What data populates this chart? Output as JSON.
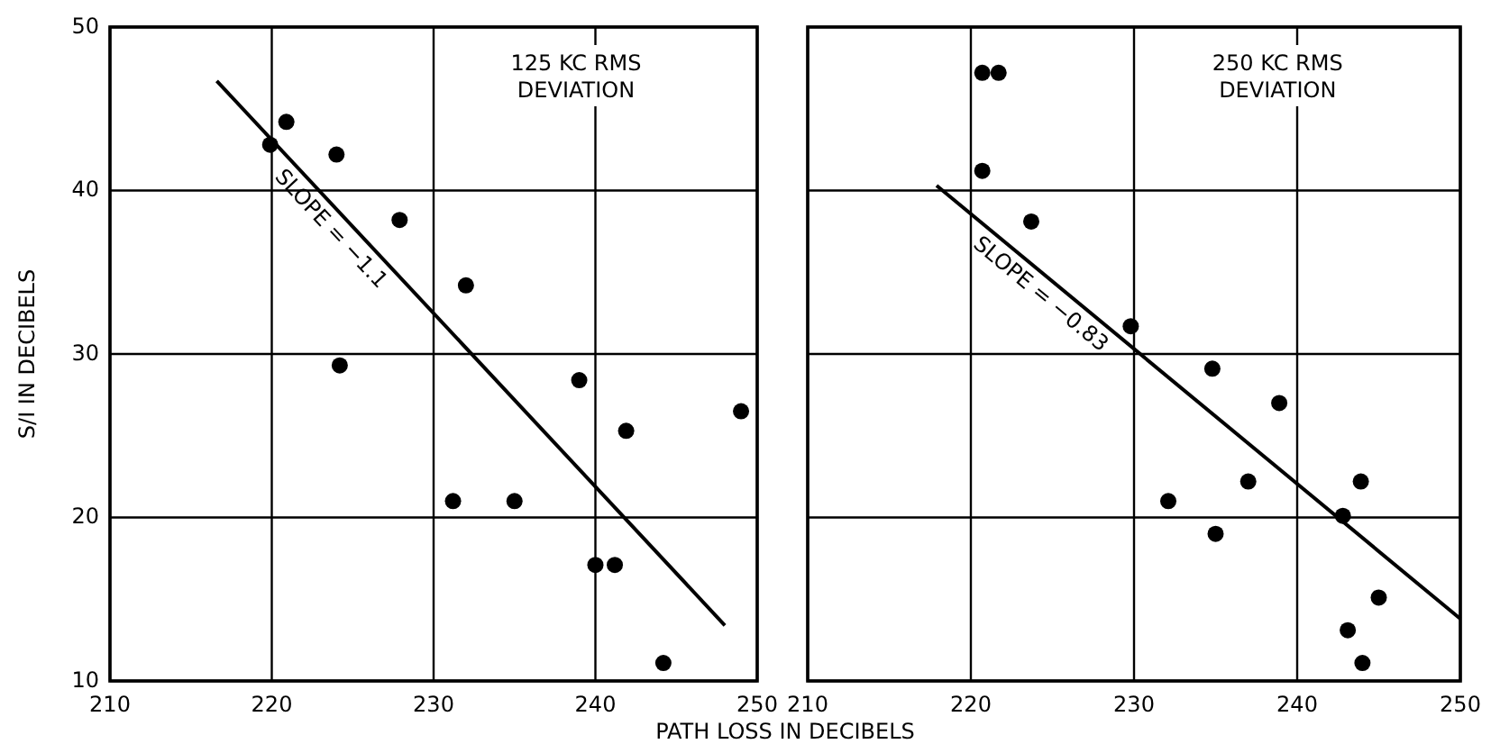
{
  "chart_data": [
    {
      "type": "scatter",
      "title": "125 KC RMS\nDEVIATION",
      "xlabel": "PATH LOSS IN DECIBELS",
      "ylabel": "S/I IN DECIBELS",
      "xlim": [
        210,
        250
      ],
      "ylim": [
        10,
        50
      ],
      "xticks": [
        210,
        220,
        230,
        240,
        250
      ],
      "yticks": [
        10,
        20,
        30,
        40,
        50
      ],
      "grid": true,
      "series": [
        {
          "marker": "circle",
          "color": "#000000",
          "x": [
            219.9,
            220.9,
            224,
            227.9,
            232,
            224.2,
            239,
            241.9,
            249,
            231.2,
            235,
            240,
            241.2,
            244.2
          ],
          "values": [
            42.8,
            44.2,
            42.2,
            38.2,
            34.2,
            29.3,
            28.4,
            25.3,
            26.5,
            21,
            21,
            17.1,
            17.1,
            11.1
          ]
        },
        {
          "type": "line",
          "color": "#000000",
          "x": [
            216.6,
            248
          ],
          "values": [
            46.7,
            13.4
          ]
        }
      ],
      "annotations": [
        "SLOPE = −1.1"
      ]
    },
    {
      "type": "scatter",
      "title": "250 KC RMS\nDEVIATION",
      "xlim": [
        210,
        250
      ],
      "ylim": [
        10,
        50
      ],
      "xticks": [
        210,
        220,
        230,
        240,
        250
      ],
      "yticks": [
        10,
        20,
        30,
        40,
        50
      ],
      "tick_labels": "x",
      "grid": true,
      "series": [
        {
          "marker": "circle",
          "color": "#000000",
          "x": [
            220.7,
            221.7,
            220.7,
            223.7,
            229.8,
            234.8,
            238.9,
            232.1,
            235,
            237,
            243.9,
            242.8,
            245,
            243.1,
            244
          ],
          "values": [
            47.2,
            47.2,
            41.2,
            38.1,
            31.7,
            29.1,
            27,
            21,
            19,
            22.2,
            22.2,
            20.1,
            15.1,
            13.1,
            11.1
          ]
        },
        {
          "type": "line",
          "color": "#000000",
          "x": [
            217.9,
            250
          ],
          "values": [
            40.3,
            13.8
          ]
        }
      ],
      "annotations": [
        "SLOPE = −0.83"
      ]
    }
  ]
}
